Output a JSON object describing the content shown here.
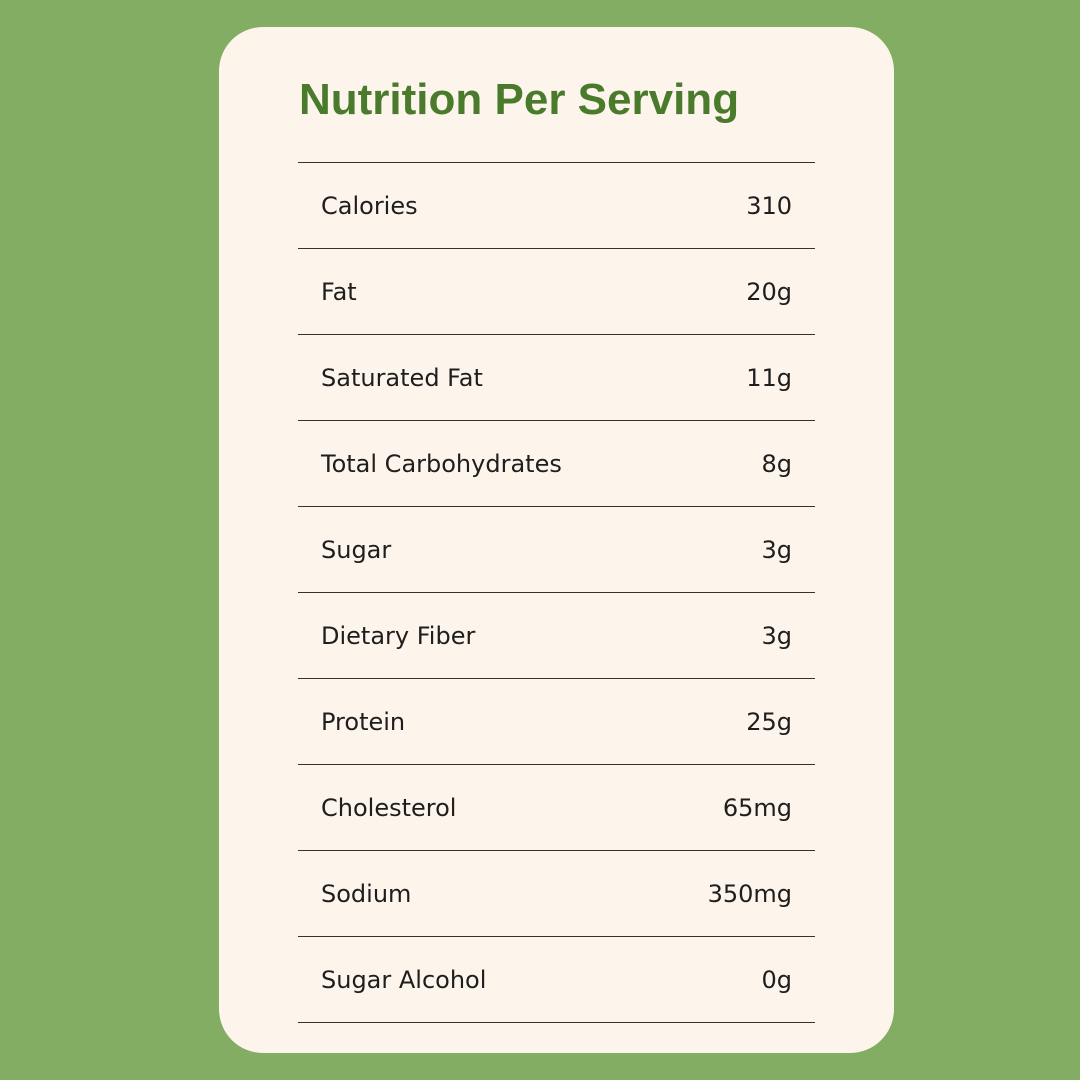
{
  "title": "Nutrition Per Serving",
  "rows": [
    [
      "Calories",
      "310"
    ],
    [
      "Fat",
      "20g"
    ],
    [
      "Saturated Fat",
      "11g"
    ],
    [
      "Total Carbohydrates",
      "8g"
    ],
    [
      "Sugar",
      "3g"
    ],
    [
      "Dietary Fiber",
      "3g"
    ],
    [
      "Protein",
      "25g"
    ],
    [
      "Cholesterol",
      "65mg"
    ],
    [
      "Sodium",
      "350mg"
    ],
    [
      "Sugar Alcohol",
      "0g"
    ]
  ]
}
